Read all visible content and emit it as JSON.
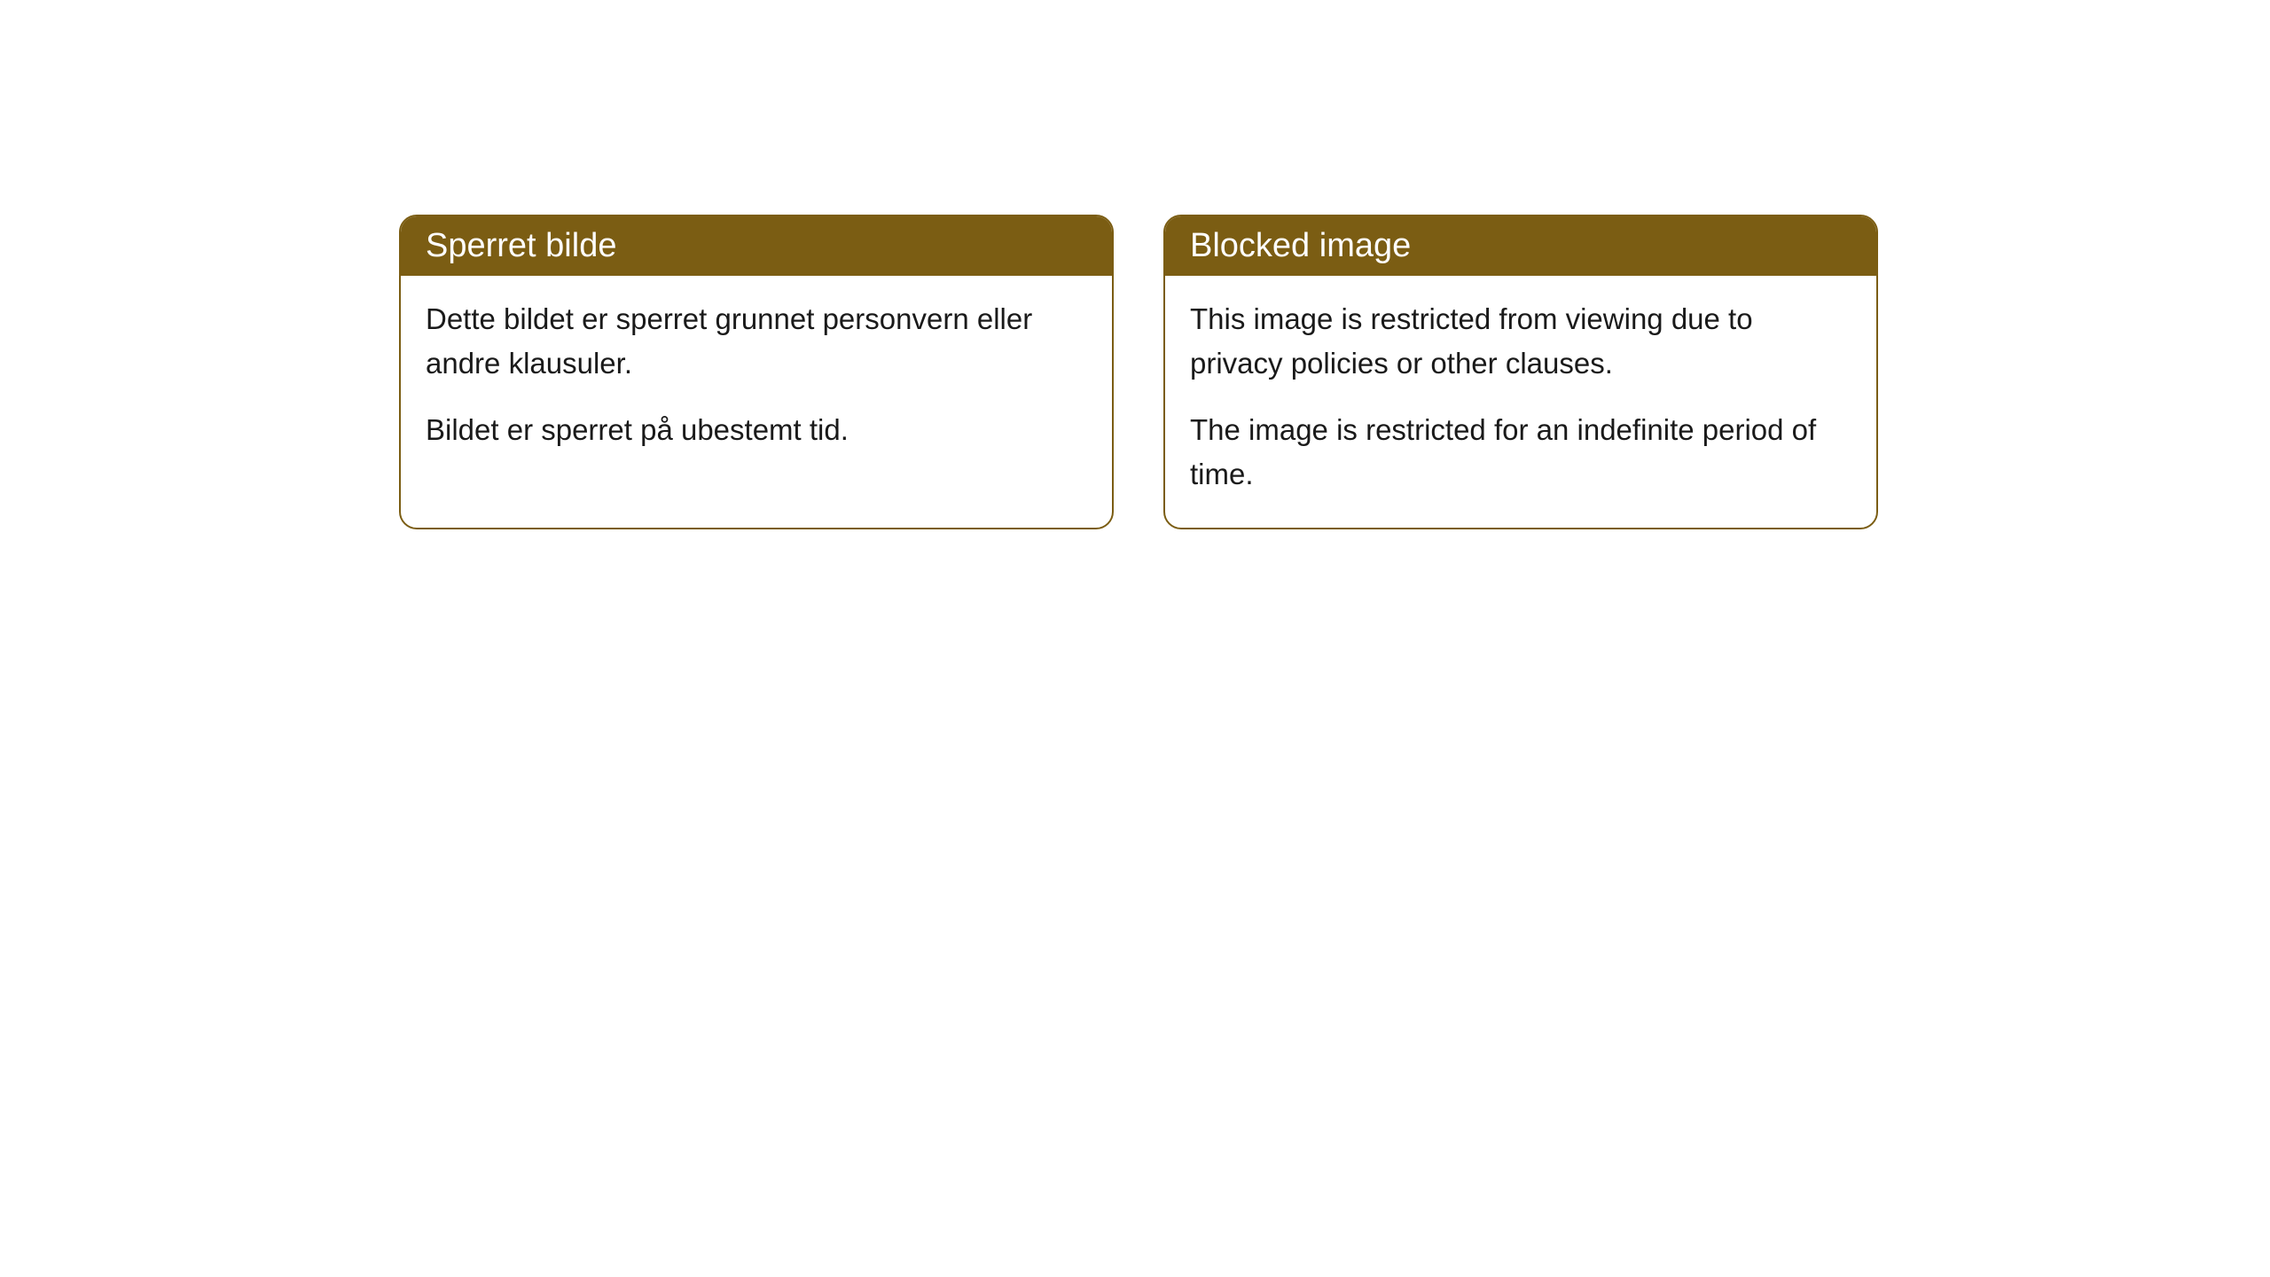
{
  "cards": [
    {
      "title": "Sperret bilde",
      "para1": "Dette bildet er sperret grunnet personvern eller andre klausuler.",
      "para2": "Bildet er sperret på ubestemt tid."
    },
    {
      "title": "Blocked image",
      "para1": "This image is restricted from viewing due to privacy policies or other clauses.",
      "para2": "The image is restricted for an indefinite period of time."
    }
  ],
  "colors": {
    "header_bg": "#7b5d13",
    "header_text": "#ffffff",
    "body_bg": "#ffffff",
    "body_text": "#1a1a1a",
    "border": "#7b5d13"
  }
}
